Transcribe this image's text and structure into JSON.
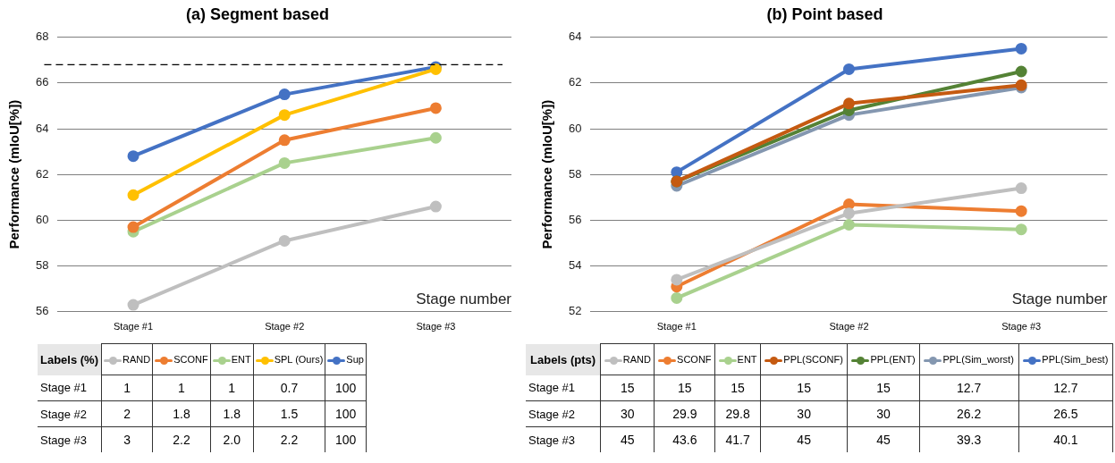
{
  "chart_data": [
    {
      "type": "line",
      "title": "(a) Segment based",
      "xlabel": "Stage number",
      "ylabel": "Performance (mIoU[%])",
      "categories": [
        "Stage #1",
        "Stage #2",
        "Stage #3"
      ],
      "series": [
        {
          "name": "RAND",
          "color": "#bfbfbf",
          "values": [
            56.3,
            59.1,
            60.6
          ]
        },
        {
          "name": "SCONF",
          "color": "#ed7d31",
          "values": [
            59.7,
            63.5,
            64.9
          ]
        },
        {
          "name": "ENT",
          "color": "#a9d18e",
          "values": [
            59.5,
            62.5,
            63.6
          ]
        },
        {
          "name": "SPL (Ours)",
          "color": "#ffc000",
          "values": [
            61.1,
            64.6,
            66.6
          ]
        },
        {
          "name": "Sup",
          "color": "#4472c4",
          "values": [
            62.8,
            65.5,
            66.7
          ]
        }
      ],
      "ylim": [
        56,
        68
      ],
      "yticks": [
        56,
        58,
        60,
        62,
        64,
        66,
        68
      ],
      "ref_lines": [
        {
          "axis": "y",
          "value": 66.8,
          "color": "#000000",
          "line_style": "dashed"
        }
      ],
      "annotations": [
        "Labels (%)",
        "1",
        "1",
        "1",
        "0.7",
        "100",
        "2",
        "1.8",
        "1.8",
        "1.5",
        "100",
        "3",
        "2.2",
        "2.0",
        "2.2",
        "100"
      ],
      "grid": "y",
      "legend": "bottom",
      "marker": "circle",
      "line_style": "solid"
    },
    {
      "type": "line",
      "title": "(b) Point based",
      "xlabel": "Stage number",
      "ylabel": "Performance (mIoU[%])",
      "categories": [
        "Stage #1",
        "Stage #2",
        "Stage #3"
      ],
      "series": [
        {
          "name": "RAND",
          "color": "#bfbfbf",
          "values": [
            53.4,
            56.3,
            57.4
          ]
        },
        {
          "name": "SCONF",
          "color": "#ed7d31",
          "values": [
            53.1,
            56.7,
            56.4
          ]
        },
        {
          "name": "ENT",
          "color": "#a9d18e",
          "values": [
            52.6,
            55.8,
            55.6
          ]
        },
        {
          "name": "PPL(SCONF)",
          "color": "#c55a11",
          "values": [
            57.7,
            61.1,
            61.9
          ]
        },
        {
          "name": "PPL(ENT)",
          "color": "#548235",
          "values": [
            57.7,
            60.8,
            62.5
          ]
        },
        {
          "name": "PPL(Sim_worst)",
          "color": "#8497b0",
          "values": [
            57.5,
            60.6,
            61.8
          ]
        },
        {
          "name": "PPL(Sim_best)",
          "color": "#4472c4",
          "values": [
            58.1,
            62.6,
            63.5
          ]
        }
      ],
      "ylim": [
        52,
        64
      ],
      "yticks": [
        52,
        54,
        56,
        58,
        60,
        62,
        64
      ],
      "annotations": [
        "Labels (pts)",
        "15",
        "15",
        "15",
        "15",
        "15",
        "12.7",
        "12.7",
        "30",
        "29.9",
        "29.8",
        "30",
        "30",
        "26.2",
        "26.5",
        "45",
        "43.6",
        "41.7",
        "45",
        "45",
        "39.3",
        "40.1"
      ],
      "grid": "y",
      "legend": "bottom",
      "marker": "circle",
      "line_style": "solid"
    }
  ]
}
